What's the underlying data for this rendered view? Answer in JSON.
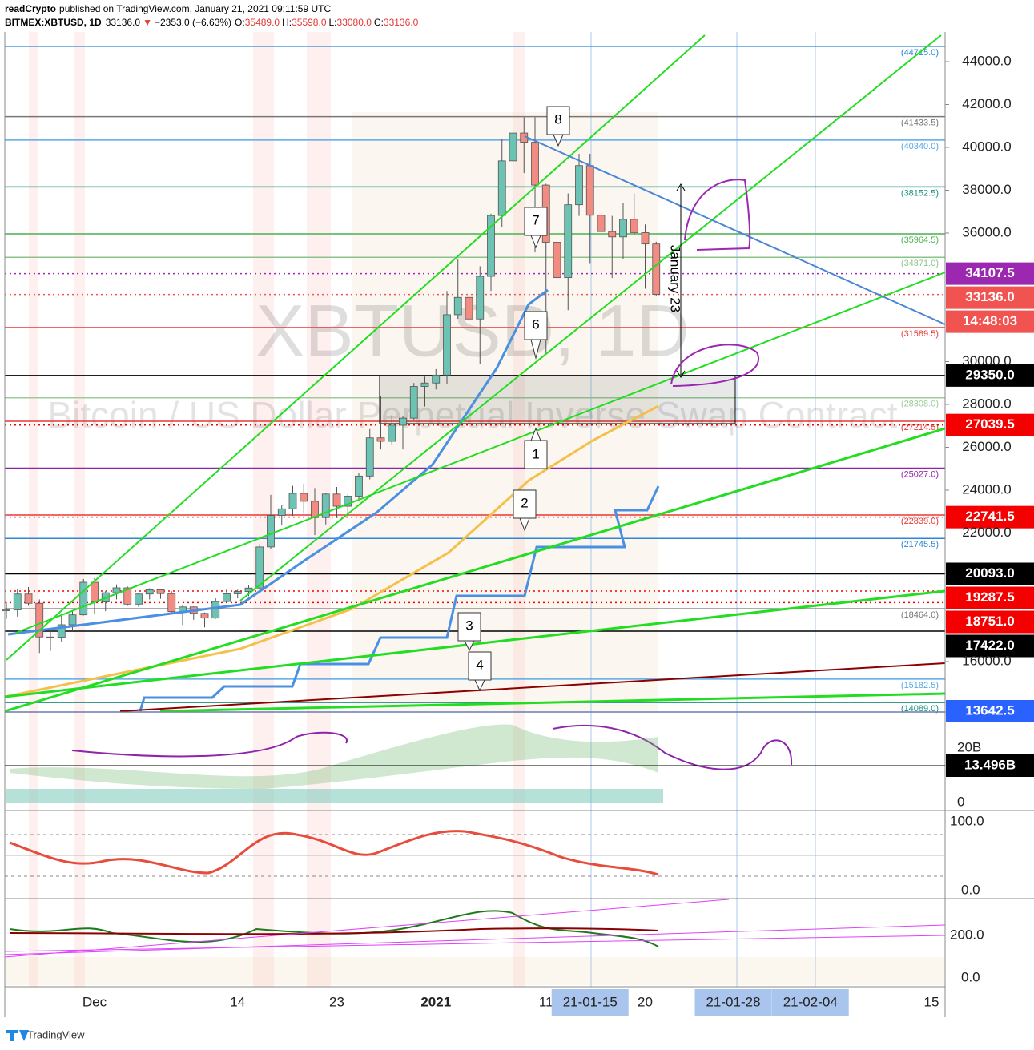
{
  "header": {
    "author": "readCrypto",
    "published": "published on TradingView.com, January 21, 2021 09:11:59 UTC",
    "symbol": "BITMEX:XBTUSD, 1D",
    "last": "33136.0",
    "arrow": "▼",
    "change": "−2353.0 (−6.63%)",
    "ohlc": [
      {
        "key": "O:",
        "value": "35489.0"
      },
      {
        "key": "H:",
        "value": "35598.0"
      },
      {
        "key": "L:",
        "value": "33080.0"
      },
      {
        "key": "C:",
        "value": "33136.0"
      }
    ]
  },
  "chart_data": {
    "type": "candlestick",
    "categories": [
      null,
      null,
      null,
      null,
      null,
      null,
      null,
      null,
      "Dec",
      null,
      null,
      null,
      null,
      null,
      null,
      null,
      null,
      null,
      null,
      null,
      null,
      "14",
      null,
      null,
      null,
      null,
      null,
      null,
      null,
      null,
      "23",
      null,
      null,
      null,
      null,
      null,
      null,
      null,
      null,
      "2021",
      null,
      null,
      null,
      null,
      null,
      null,
      null,
      null,
      null,
      "11",
      null,
      null,
      null,
      "21-01-15",
      null,
      null,
      null,
      null,
      "20",
      null,
      null,
      null,
      null,
      null,
      null,
      null,
      "21-01-28",
      null,
      null,
      null,
      null,
      null,
      null,
      "21-02-04",
      null,
      null,
      null,
      null,
      null,
      null,
      null,
      null,
      null,
      null,
      "15"
    ],
    "open": [
      18370,
      18410,
      19150,
      18720,
      17150,
      17140,
      17720,
      18180,
      19700,
      18780,
      19210,
      19440,
      18680,
      19150,
      19350,
      19170,
      18330,
      18550,
      18250,
      18030,
      18800,
      19160,
      19270,
      19430,
      21350,
      22820,
      23130,
      23850,
      23480,
      22720,
      23820,
      23250,
      23720,
      24660,
      26440,
      26280,
      27030,
      27360,
      28840,
      29000,
      29370,
      32190,
      33000,
      31990,
      33980,
      36820,
      39370,
      40670,
      40240,
      38240,
      35570,
      33920,
      37320,
      39150,
      36830,
      36070,
      35820,
      36640,
      36020,
      35489,
      null,
      null,
      null,
      null,
      null,
      null,
      null,
      null,
      null,
      null,
      null,
      null,
      null,
      null,
      null,
      null,
      null,
      null,
      null,
      null,
      null,
      null,
      null,
      null,
      null
    ],
    "high": [
      18770,
      19400,
      19480,
      18900,
      17450,
      18250,
      18350,
      19850,
      19900,
      19300,
      19600,
      19500,
      19180,
      19420,
      19400,
      19280,
      18650,
      18570,
      18290,
      18950,
      19400,
      19350,
      19570,
      21500,
      23780,
      23300,
      24200,
      24300,
      24100,
      23850,
      24150,
      23800,
      24800,
      26850,
      28400,
      27500,
      27450,
      29000,
      29300,
      29650,
      33300,
      34800,
      33650,
      34450,
      36900,
      40400,
      41950,
      41400,
      41400,
      38300,
      36600,
      37850,
      39700,
      39700,
      37900,
      36800,
      37400,
      37850,
      36400,
      35598,
      null,
      null,
      null,
      null,
      null,
      null,
      null,
      null,
      null,
      null,
      null,
      null,
      null,
      null,
      null,
      null,
      null,
      null,
      null,
      null,
      null,
      null,
      null,
      null,
      null
    ],
    "low": [
      18000,
      18100,
      18600,
      16400,
      16500,
      16900,
      17500,
      18150,
      18200,
      18350,
      18900,
      18600,
      18550,
      18900,
      18930,
      18250,
      17700,
      17950,
      17600,
      18000,
      18750,
      18950,
      19050,
      19300,
      21250,
      22350,
      22800,
      22900,
      21900,
      22400,
      22700,
      22750,
      23500,
      24500,
      25900,
      26100,
      25900,
      27250,
      27900,
      28700,
      28950,
      32000,
      27800,
      29900,
      33300,
      36300,
      36800,
      38800,
      35100,
      30400,
      32500,
      32400,
      36800,
      34600,
      35500,
      33900,
      34800,
      35900,
      33400,
      33080,
      null,
      null,
      null,
      null,
      null,
      null,
      null,
      null,
      null,
      null,
      null,
      null,
      null,
      null,
      null,
      null,
      null,
      null,
      null,
      null,
      null,
      null,
      null,
      null,
      null
    ],
    "close": [
      18410,
      19150,
      18720,
      17150,
      17140,
      17720,
      18180,
      19700,
      18780,
      19210,
      19440,
      18680,
      19150,
      19350,
      19170,
      18330,
      18550,
      18250,
      18030,
      18800,
      19160,
      19270,
      19430,
      21350,
      22820,
      23130,
      23850,
      23480,
      22720,
      23820,
      23250,
      23720,
      24660,
      26440,
      26280,
      27030,
      27360,
      28840,
      29000,
      29370,
      32190,
      33000,
      31990,
      33980,
      36820,
      39370,
      40670,
      40240,
      38240,
      35570,
      33920,
      37320,
      39150,
      36830,
      36070,
      35820,
      36640,
      36020,
      35489,
      33136,
      null,
      null,
      null,
      null,
      null,
      null,
      null,
      null,
      null,
      null,
      null,
      null,
      null,
      null,
      null,
      null,
      null,
      null,
      null,
      null,
      null,
      null,
      null,
      null,
      null
    ],
    "up_color": "#6cc3b4",
    "down_color": "#f28b82",
    "ylim": [
      13682,
      45383
    ],
    "yticks": [
      {
        "value": 16000,
        "label": "16000.0"
      },
      {
        "value": 22000,
        "label": "22000.0"
      },
      {
        "value": 24000,
        "label": "24000.0"
      },
      {
        "value": 26000,
        "label": "26000.0"
      },
      {
        "value": 28000,
        "label": "28000.0"
      },
      {
        "value": 30000,
        "label": "30000.0"
      },
      {
        "value": 36000,
        "label": "36000.0"
      },
      {
        "value": 38000,
        "label": "38000.0"
      },
      {
        "value": 40000,
        "label": "40000.0"
      },
      {
        "value": 42000,
        "label": "42000.0"
      },
      {
        "value": 44000,
        "label": "44000.0"
      }
    ],
    "levels": [
      {
        "value": 44715,
        "label": "(44715.0)",
        "color": "#2f86d6"
      },
      {
        "value": 41433.5,
        "label": "(41433.5)",
        "color": "#777777"
      },
      {
        "value": 40340,
        "label": "(40340.0)",
        "color": "#5aa9e6"
      },
      {
        "value": 38152.5,
        "label": "(38152.5)",
        "color": "#1a8f7d"
      },
      {
        "value": 35964.5,
        "label": "(35964.5)",
        "color": "#4caf50"
      },
      {
        "value": 34871,
        "label": "(34871.0)",
        "color": "#8bc48b"
      },
      {
        "value": 31589.5,
        "label": "(31589.5)",
        "color": "#e53935"
      },
      {
        "value": 28308,
        "label": "(28308.0)",
        "color": "#9ccc9c"
      },
      {
        "value": 27214.5,
        "label": "(27214.5)",
        "color": "#e53935"
      },
      {
        "value": 25027,
        "label": "(25027.0)",
        "color": "#8e24aa"
      },
      {
        "value": 22839,
        "label": "(22839.0)",
        "color": "#e53935"
      },
      {
        "value": 21745.5,
        "label": "(21745.5)",
        "color": "#2f86d6"
      },
      {
        "value": 18464,
        "label": "(18464.0)",
        "color": "#777777"
      },
      {
        "value": 15182.5,
        "label": "(15182.5)",
        "color": "#5aa9e6"
      },
      {
        "value": 14089,
        "label": "(14089.0)",
        "color": "#1a8f7d"
      }
    ],
    "badges": [
      {
        "value": 34107.5,
        "label": "34107.5",
        "color": "#9c27b0",
        "dash": true
      },
      {
        "value": 33136,
        "label": "33136.0",
        "color": "#f05350",
        "dash": true
      },
      {
        "value": 29350,
        "label": "29350.0",
        "color": "#000000",
        "dash": false
      },
      {
        "value": 27039.5,
        "label": "27039.5",
        "color": "#f50000",
        "dash": true
      },
      {
        "value": 22741.5,
        "label": "22741.5",
        "color": "#f50000",
        "dash": true
      },
      {
        "value": 20093,
        "label": "20093.0",
        "color": "#000000",
        "dash": false
      },
      {
        "value": 19287.5,
        "label": "19287.5",
        "color": "#f50000",
        "dash": true
      },
      {
        "value": 18751,
        "label": "18751.0",
        "color": "#f50000",
        "dash": true
      },
      {
        "value": 17422,
        "label": "17422.0",
        "color": "#000000",
        "dash": false
      },
      {
        "value": 13642.5,
        "label": "13642.5",
        "color": "#2962ff",
        "dash": false
      }
    ],
    "countdown": "14:48:03",
    "watermark": "XBTUSD, 1D",
    "watermark_sub": "Bitcoin / US Dollar Perpetual Inverse Swap Contract",
    "annotation": "January 23",
    "callouts": [
      "1",
      "2",
      "3",
      "4",
      "6",
      "7",
      "8"
    ],
    "panes": [
      {
        "ticks": [
          "20B",
          "0"
        ],
        "badge": "13.496B"
      },
      {
        "ticks": [
          "100.0",
          "0.0"
        ]
      },
      {
        "ticks": [
          "200.0",
          "0.0"
        ]
      }
    ]
  },
  "footer": "TradingView"
}
